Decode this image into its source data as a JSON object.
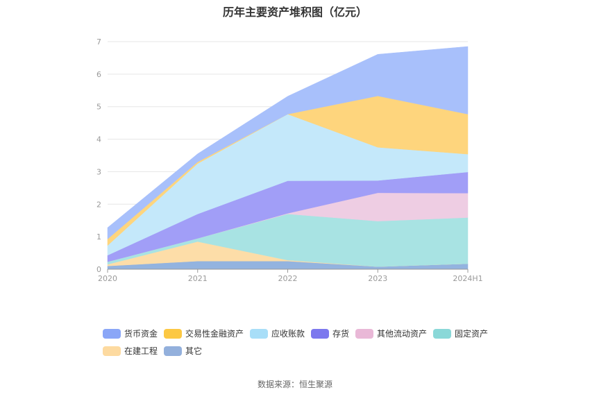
{
  "chart_data": {
    "type": "area",
    "stacked": true,
    "title": "历年主要资产堆积图（亿元）",
    "categories": [
      "2020",
      "2021",
      "2022",
      "2023",
      "2024H1"
    ],
    "ylim": [
      0,
      7
    ],
    "yticks": [
      "0",
      "1",
      "2",
      "3",
      "4",
      "5",
      "6",
      "7"
    ],
    "grid": true,
    "legend_position": "bottom",
    "series": [
      {
        "name": "其它",
        "color": "#93B3DF",
        "values": [
          0.1,
          0.25,
          0.25,
          0.08,
          0.17
        ]
      },
      {
        "name": "在建工程",
        "color": "#FDDDA8",
        "values": [
          0.05,
          0.6,
          0.03,
          0.0,
          0.0
        ]
      },
      {
        "name": "固定资产",
        "color": "#A8E3E3",
        "values": [
          0.08,
          0.1,
          1.42,
          1.4,
          1.42
        ]
      },
      {
        "name": "其他流动资产",
        "color": "#EECDE3",
        "values": [
          0.0,
          0.0,
          0.02,
          0.87,
          0.75
        ]
      },
      {
        "name": "存货",
        "color": "#A19EF7",
        "values": [
          0.2,
          0.75,
          1.0,
          0.38,
          0.65
        ]
      },
      {
        "name": "应收账款",
        "color": "#C4E8FA",
        "values": [
          0.3,
          1.55,
          2.05,
          1.02,
          0.55
        ]
      },
      {
        "name": "交易性金融资产",
        "color": "#FED57D",
        "values": [
          0.2,
          0.05,
          0.0,
          1.58,
          1.23
        ]
      },
      {
        "name": "货币资金",
        "color": "#A8C0FB",
        "values": [
          0.35,
          0.25,
          0.55,
          1.28,
          2.08
        ]
      }
    ]
  },
  "legend": {
    "items": [
      {
        "label": "货币资金",
        "color": "#8AA6F7"
      },
      {
        "label": "交易性金融资产",
        "color": "#FCC843"
      },
      {
        "label": "应收账款",
        "color": "#A8DEF8"
      },
      {
        "label": "存货",
        "color": "#7C78EE"
      },
      {
        "label": "其他流动资产",
        "color": "#E9B8D7"
      },
      {
        "label": "固定资产",
        "color": "#8AD8D8"
      },
      {
        "label": "在建工程",
        "color": "#FDDAA0"
      },
      {
        "label": "其它",
        "color": "#93B0DC"
      }
    ]
  },
  "source": "数据来源：恒生聚源"
}
